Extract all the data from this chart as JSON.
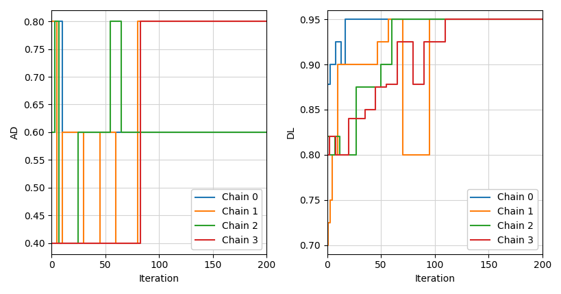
{
  "ad_chains": {
    "Chain 0": {
      "x": [
        0,
        5,
        5,
        10,
        10,
        200
      ],
      "y": [
        0.8,
        0.8,
        0.8,
        0.8,
        0.6,
        0.6
      ]
    },
    "Chain 1": {
      "x": [
        0,
        5,
        5,
        10,
        10,
        30,
        30,
        45,
        45,
        60,
        60,
        80,
        80,
        200
      ],
      "y": [
        0.8,
        0.8,
        0.4,
        0.4,
        0.6,
        0.6,
        0.4,
        0.4,
        0.6,
        0.6,
        0.4,
        0.4,
        0.8,
        0.8
      ]
    },
    "Chain 2": {
      "x": [
        0,
        3,
        3,
        7,
        7,
        25,
        25,
        55,
        55,
        65,
        65,
        200
      ],
      "y": [
        0.6,
        0.6,
        0.8,
        0.8,
        0.4,
        0.4,
        0.6,
        0.6,
        0.8,
        0.8,
        0.6,
        0.6
      ]
    },
    "Chain 3": {
      "x": [
        0,
        83,
        83,
        200
      ],
      "y": [
        0.4,
        0.4,
        0.8,
        0.8
      ]
    }
  },
  "dl_chains": {
    "Chain 0": {
      "x": [
        0,
        3,
        3,
        8,
        8,
        13,
        13,
        17,
        17,
        50,
        50,
        200
      ],
      "y": [
        0.878,
        0.878,
        0.9,
        0.9,
        0.925,
        0.925,
        0.9,
        0.9,
        0.95,
        0.95,
        0.95,
        0.95
      ]
    },
    "Chain 1": {
      "x": [
        0,
        1,
        1,
        3,
        3,
        5,
        5,
        10,
        10,
        47,
        47,
        57,
        57,
        70,
        70,
        95,
        95,
        200
      ],
      "y": [
        0.7,
        0.7,
        0.725,
        0.725,
        0.75,
        0.75,
        0.8,
        0.8,
        0.9,
        0.9,
        0.925,
        0.925,
        0.95,
        0.95,
        0.8,
        0.8,
        0.95,
        0.95
      ]
    },
    "Chain 2": {
      "x": [
        0,
        2,
        2,
        7,
        7,
        12,
        12,
        27,
        27,
        50,
        50,
        60,
        60,
        200
      ],
      "y": [
        0.82,
        0.82,
        0.8,
        0.8,
        0.82,
        0.82,
        0.8,
        0.8,
        0.875,
        0.875,
        0.9,
        0.9,
        0.95,
        0.95
      ]
    },
    "Chain 3": {
      "x": [
        0,
        2,
        2,
        8,
        8,
        20,
        20,
        35,
        35,
        45,
        45,
        55,
        55,
        65,
        65,
        80,
        80,
        90,
        90,
        110,
        110,
        200
      ],
      "y": [
        0.8,
        0.8,
        0.82,
        0.82,
        0.8,
        0.8,
        0.84,
        0.84,
        0.85,
        0.85,
        0.875,
        0.875,
        0.878,
        0.878,
        0.925,
        0.925,
        0.878,
        0.878,
        0.925,
        0.925,
        0.95,
        0.95
      ]
    }
  },
  "colors": {
    "Chain 0": "#1f77b4",
    "Chain 1": "#ff7f0e",
    "Chain 2": "#2ca02c",
    "Chain 3": "#d62728"
  },
  "ad_ylim": [
    0.38,
    0.82
  ],
  "dl_ylim": [
    0.69,
    0.96
  ],
  "xlim": [
    0,
    200
  ],
  "xlabel": "Iteration",
  "ad_ylabel": "AD",
  "dl_ylabel": "DL",
  "ad_yticks": [
    0.4,
    0.45,
    0.5,
    0.55,
    0.6,
    0.65,
    0.7,
    0.75,
    0.8
  ],
  "dl_yticks": [
    0.7,
    0.75,
    0.8,
    0.85,
    0.9,
    0.95
  ],
  "xticks": [
    0,
    50,
    100,
    150,
    200
  ]
}
